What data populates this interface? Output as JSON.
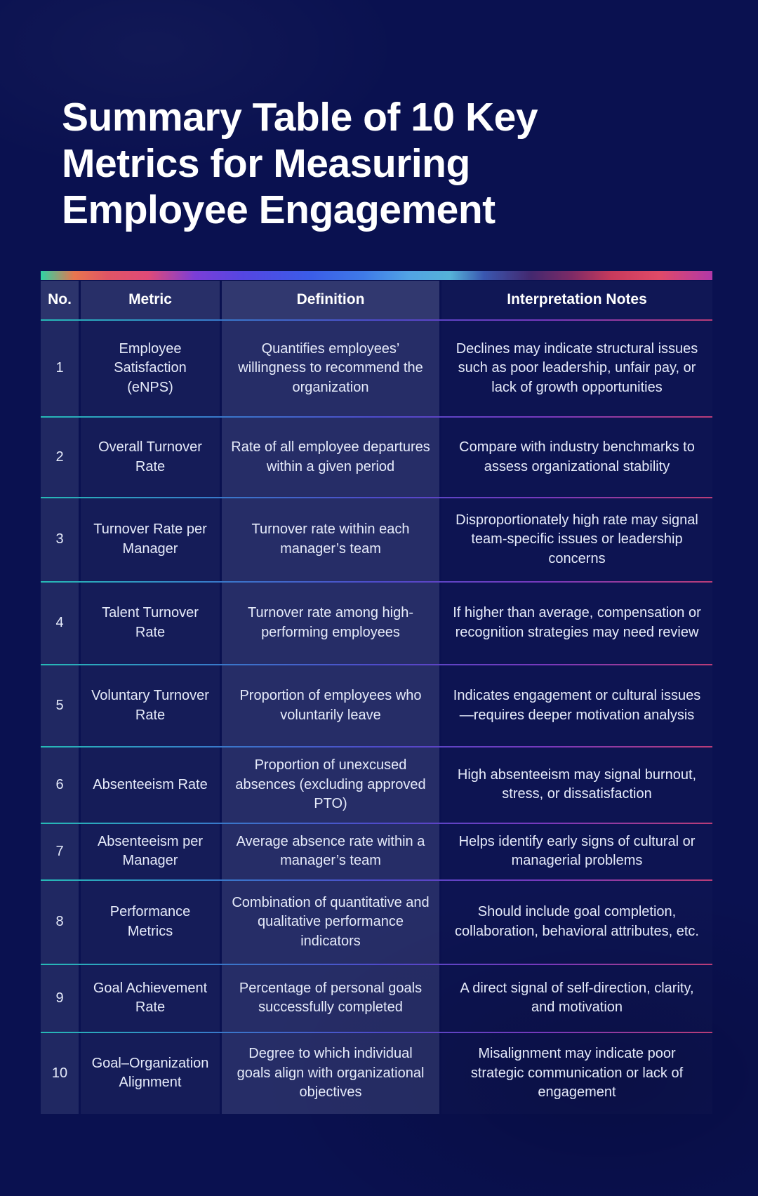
{
  "page": {
    "title": "Summary Table of 10 Key Metrics for Measuring Employee Engagement",
    "background_color": "#0A1150",
    "text_color": "#E6EBFA",
    "accent_bar_colors": [
      "#2FD3A4",
      "#E8764F",
      "#E05565",
      "#7B3ED8",
      "#5546E2",
      "#3B5CE8",
      "#52A4E4",
      "#55B2D8",
      "#43286F",
      "#C73A5C",
      "#E04A67",
      "#B238A8"
    ],
    "row_separator_colors": [
      "#2BD8C8",
      "#3F8FE0",
      "#8A3FD0",
      "#D8447E"
    ]
  },
  "table": {
    "columns": [
      {
        "key": "no",
        "label": "No."
      },
      {
        "key": "metric",
        "label": "Metric"
      },
      {
        "key": "definition",
        "label": "Definition"
      },
      {
        "key": "interpretation",
        "label": "Interpretation Notes"
      }
    ],
    "rows": [
      {
        "no": "1",
        "metric": "Employee Satisfaction (eNPS)",
        "definition": "Quantifies employees’ willingness to recommend the organization",
        "interpretation": "Declines may indicate structural issues such as poor leadership, unfair pay, or lack of growth opportunities"
      },
      {
        "no": "2",
        "metric": "Overall Turnover Rate",
        "definition": "Rate of all employee departures within a given period",
        "interpretation": "Compare with industry benchmarks to assess organizational stability"
      },
      {
        "no": "3",
        "metric": "Turnover Rate per Manager",
        "definition": "Turnover rate within each manager’s team",
        "interpretation": "Disproportionately high rate may signal team-specific issues or leadership concerns"
      },
      {
        "no": "4",
        "metric": "Talent Turnover Rate",
        "definition": "Turnover rate among high-performing employees",
        "interpretation": "If higher than average, compensation or recognition strategies may need review"
      },
      {
        "no": "5",
        "metric": "Voluntary Turnover Rate",
        "definition": "Proportion of employees who voluntarily leave",
        "interpretation": "Indicates engagement or cultural issues—requires deeper motivation analysis"
      },
      {
        "no": "6",
        "metric": "Absenteeism Rate",
        "definition": "Proportion of unexcused absences (excluding approved PTO)",
        "interpretation": "High absenteeism may signal burnout, stress, or dissatisfaction"
      },
      {
        "no": "7",
        "metric": "Absenteeism per Manager",
        "definition": "Average absence rate within a manager’s team",
        "interpretation": "Helps identify early signs of cultural or managerial problems"
      },
      {
        "no": "8",
        "metric": "Performance Metrics",
        "definition": "Combination of quantitative and qualitative performance indicators",
        "interpretation": "Should include goal completion, collaboration, behavioral attributes, etc."
      },
      {
        "no": "9",
        "metric": "Goal Achievement Rate",
        "definition": "Percentage of personal goals successfully completed",
        "interpretation": "A direct signal of self-direction, clarity, and motivation"
      },
      {
        "no": "10",
        "metric": "Goal–Organization Alignment",
        "definition": "Degree to which individual goals align with organizational objectives",
        "interpretation": "Misalignment may indicate poor strategic communication or lack of engagement"
      }
    ]
  }
}
